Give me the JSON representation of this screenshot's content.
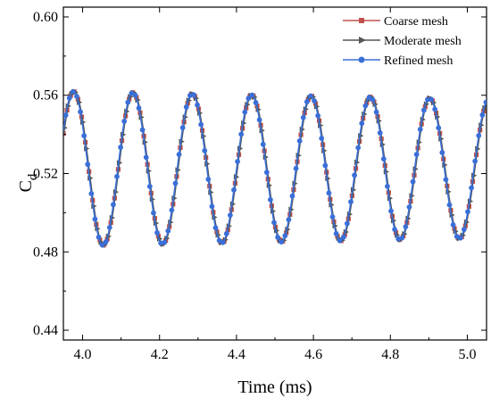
{
  "chart_data": {
    "type": "line",
    "xlabel": "Time (ms)",
    "ylabel_main": "C",
    "ylabel_sub": "d",
    "xlim": [
      3.95,
      5.05
    ],
    "ylim": [
      0.435,
      0.605
    ],
    "xticks": [
      4.0,
      4.2,
      4.4,
      4.6,
      4.8,
      5.0
    ],
    "xtick_labels": [
      "4.0",
      "4.2",
      "4.4",
      "4.6",
      "4.8",
      "5.0"
    ],
    "yticks": [
      0.44,
      0.48,
      0.52,
      0.56,
      0.6
    ],
    "ytick_labels": [
      "0.44",
      "0.48",
      "0.52",
      "0.56",
      "0.60"
    ],
    "grid": false,
    "legend_position": "top-right",
    "series": [
      {
        "name": "Coarse mesh",
        "color": "#c0504d",
        "marker": "square",
        "mean": 0.5225,
        "amplitude_start": 0.0395,
        "amplitude_end": 0.0355,
        "period_ms": 0.1543,
        "peak_time_ms": 3.977,
        "phase_shift_ms": 0.0
      },
      {
        "name": "Moderate mesh",
        "color": "#555555",
        "marker": "triangle-right",
        "mean": 0.5225,
        "amplitude_start": 0.0395,
        "amplitude_end": 0.0355,
        "period_ms": 0.1543,
        "peak_time_ms": 3.977,
        "phase_shift_ms": 0.001
      },
      {
        "name": "Refined mesh",
        "color": "#3a6fd8",
        "marker": "circle",
        "mean": 0.5225,
        "amplitude_start": 0.0395,
        "amplitude_end": 0.0355,
        "period_ms": 0.1543,
        "peak_time_ms": 3.977,
        "phase_shift_ms": -0.001
      }
    ],
    "peaks": [
      {
        "x": 3.977,
        "y": 0.562
      },
      {
        "x": 4.131,
        "y": 0.561
      },
      {
        "x": 4.285,
        "y": 0.561
      },
      {
        "x": 4.44,
        "y": 0.56
      },
      {
        "x": 4.594,
        "y": 0.559
      },
      {
        "x": 4.748,
        "y": 0.558
      },
      {
        "x": 4.903,
        "y": 0.558
      }
    ],
    "troughs": [
      {
        "x": 4.054,
        "y": 0.483
      },
      {
        "x": 4.208,
        "y": 0.484
      },
      {
        "x": 4.362,
        "y": 0.484
      },
      {
        "x": 4.517,
        "y": 0.485
      },
      {
        "x": 4.671,
        "y": 0.486
      },
      {
        "x": 4.825,
        "y": 0.486
      },
      {
        "x": 4.98,
        "y": 0.487
      }
    ]
  }
}
